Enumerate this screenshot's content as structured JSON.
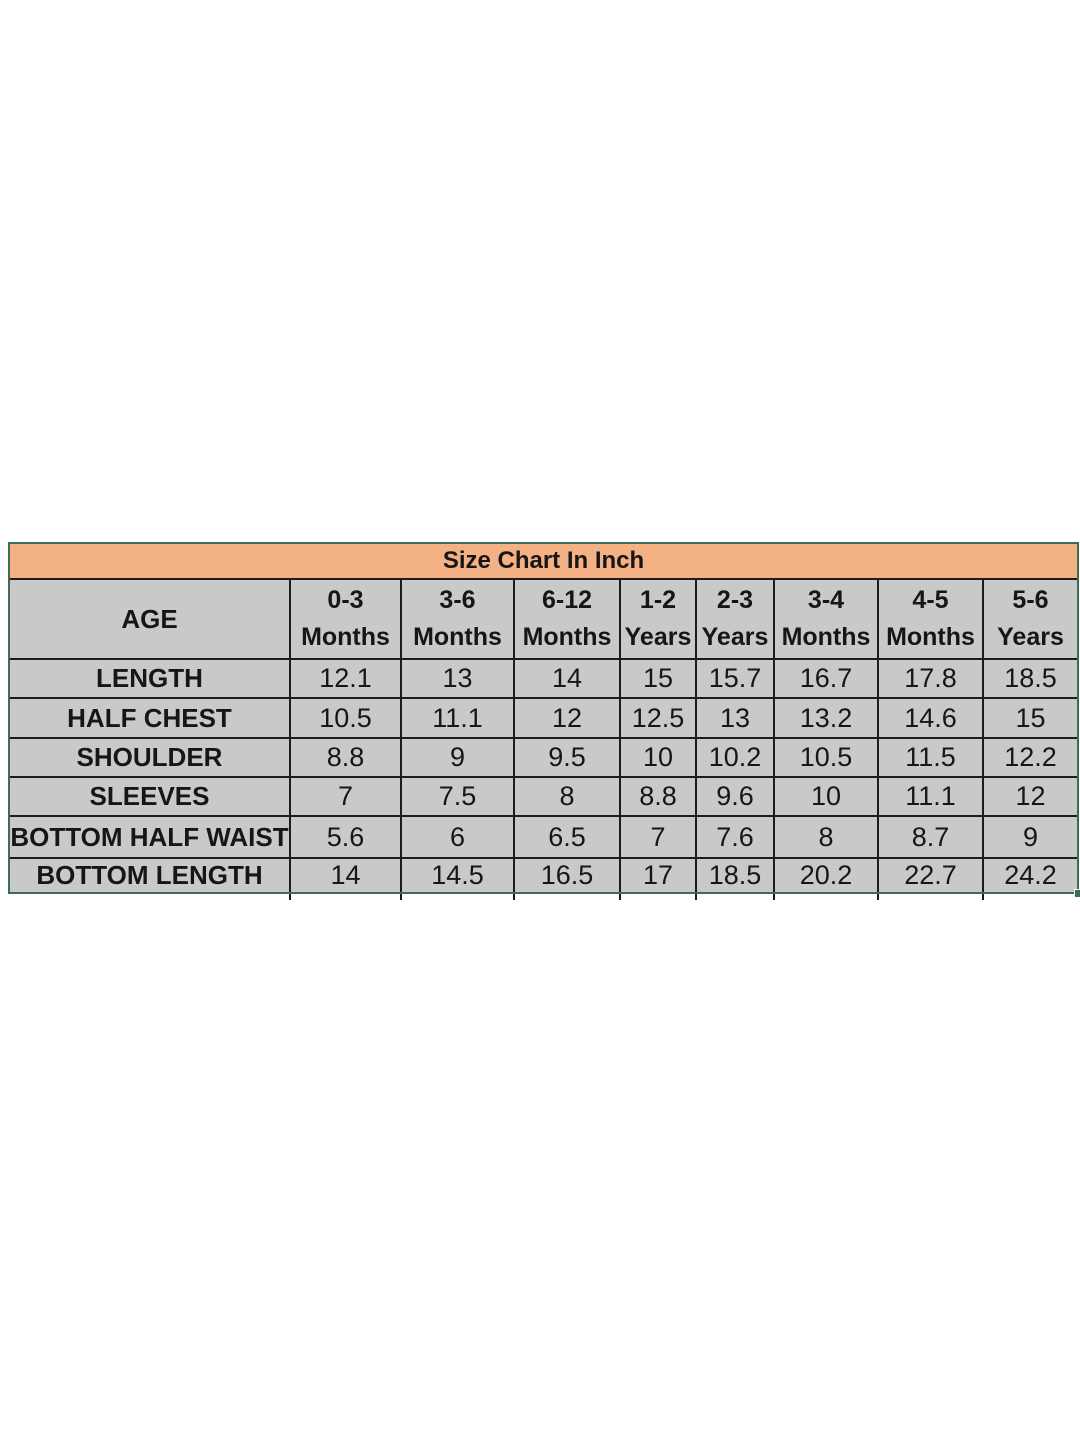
{
  "colors": {
    "title_bg": "#f4b183",
    "cell_bg": "#c9c9c9",
    "grid_line": "#1c1c1c",
    "selection_border": "#3d6e51",
    "text": "#161616",
    "page_bg": "#ffffff"
  },
  "chart_data": {
    "type": "table",
    "title": "Size Chart In Inch",
    "corner_label": "AGE",
    "units": "inches",
    "columns": [
      "0-3 Months",
      "3-6 Months",
      "6-12 Months",
      "1-2 Years",
      "2-3 Years",
      "3-4 Months",
      "4-5 Months",
      "5-6 Years"
    ],
    "rows": [
      {
        "label": "LENGTH",
        "values": [
          "12.1",
          "13",
          "14",
          "15",
          "15.7",
          "16.7",
          "17.8",
          "18.5"
        ]
      },
      {
        "label": "HALF CHEST",
        "values": [
          "10.5",
          "11.1",
          "12",
          "12.5",
          "13",
          "13.2",
          "14.6",
          "15"
        ]
      },
      {
        "label": "SHOULDER",
        "values": [
          "8.8",
          "9",
          "9.5",
          "10",
          "10.2",
          "10.5",
          "11.5",
          "12.2"
        ]
      },
      {
        "label": "SLEEVES",
        "values": [
          "7",
          "7.5",
          "8",
          "8.8",
          "9.6",
          "10",
          "11.1",
          "12"
        ]
      },
      {
        "label": "BOTTOM HALF WAIST",
        "values": [
          "5.6",
          "6",
          "6.5",
          "7",
          "7.6",
          "8",
          "8.7",
          "9"
        ]
      },
      {
        "label": "BOTTOM LENGTH",
        "values": [
          "14",
          "14.5",
          "16.5",
          "17",
          "18.5",
          "20.2",
          "22.7",
          "24.2"
        ]
      }
    ]
  }
}
